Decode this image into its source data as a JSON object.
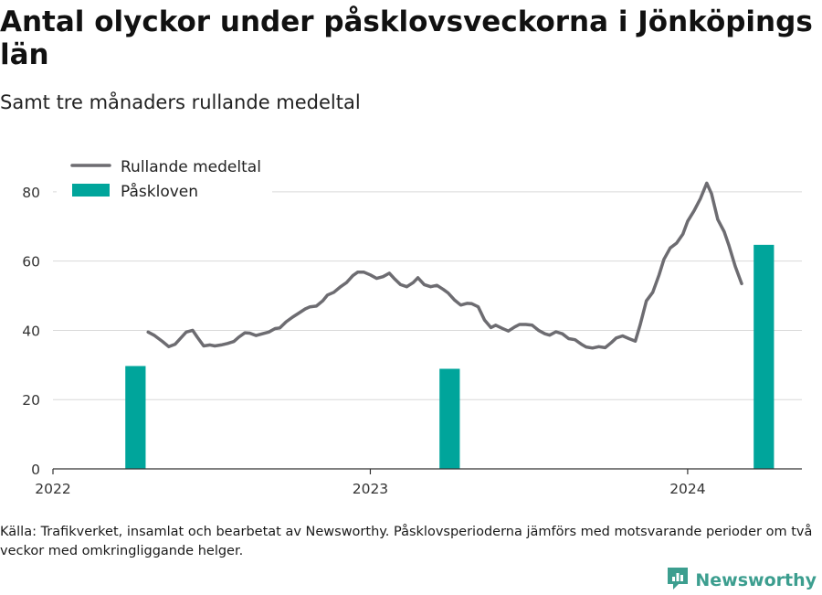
{
  "title": "Antal olyckor under påsklovsveckorna i Jönköpings län",
  "subtitle": "Samt tre månaders rullande medeltal",
  "source": "Källa: Trafikverket, insamlat och bearbetat av Newsworthy. Påsklovsperioderna jämförs med motsvarande perioder om två veckor med omkringliggande helger.",
  "brand": {
    "name": "Newsworthy",
    "icon": "newsworthy-logo-icon"
  },
  "colors": {
    "line": "#6d6c71",
    "bar": "#00a59b",
    "grid": "#d9d9d9",
    "brand": "#3c9e8f"
  },
  "chart_data": {
    "type": "bar+line",
    "xlim": [
      2022.0,
      2024.36
    ],
    "ylim": [
      0,
      90
    ],
    "x_ticks": [
      {
        "value": 2022,
        "label": "2022"
      },
      {
        "value": 2023,
        "label": "2023"
      },
      {
        "value": 2024,
        "label": "2024"
      }
    ],
    "y_ticks": [
      {
        "value": 0,
        "label": "0"
      },
      {
        "value": 20,
        "label": "20"
      },
      {
        "value": 40,
        "label": "40"
      },
      {
        "value": 60,
        "label": "60"
      },
      {
        "value": 80,
        "label": "80"
      }
    ],
    "grid": true,
    "legend": {
      "position": "top-left"
    },
    "series": [
      {
        "name": "Rullande medeltal",
        "type": "line",
        "points": [
          [
            2022.3,
            39.5
          ],
          [
            2022.32,
            38.5
          ],
          [
            2022.345,
            36.8
          ],
          [
            2022.365,
            35.3
          ],
          [
            2022.385,
            36.0
          ],
          [
            2022.405,
            38.0
          ],
          [
            2022.42,
            39.5
          ],
          [
            2022.44,
            40.0
          ],
          [
            2022.455,
            38.0
          ],
          [
            2022.475,
            35.5
          ],
          [
            2022.495,
            35.8
          ],
          [
            2022.51,
            35.5
          ],
          [
            2022.53,
            35.8
          ],
          [
            2022.55,
            36.2
          ],
          [
            2022.57,
            36.8
          ],
          [
            2022.585,
            38.0
          ],
          [
            2022.605,
            39.3
          ],
          [
            2022.62,
            39.2
          ],
          [
            2022.64,
            38.5
          ],
          [
            2022.66,
            39.0
          ],
          [
            2022.68,
            39.5
          ],
          [
            2022.7,
            40.5
          ],
          [
            2022.715,
            40.7
          ],
          [
            2022.735,
            42.5
          ],
          [
            2022.755,
            43.8
          ],
          [
            2022.775,
            45.0
          ],
          [
            2022.795,
            46.2
          ],
          [
            2022.81,
            46.8
          ],
          [
            2022.83,
            47.0
          ],
          [
            2022.85,
            48.5
          ],
          [
            2022.865,
            50.2
          ],
          [
            2022.885,
            51.0
          ],
          [
            2022.905,
            52.5
          ],
          [
            2022.925,
            53.8
          ],
          [
            2022.945,
            55.8
          ],
          [
            2022.96,
            56.8
          ],
          [
            2022.98,
            56.8
          ],
          [
            2023.0,
            56.0
          ],
          [
            2023.02,
            55.0
          ],
          [
            2023.04,
            55.5
          ],
          [
            2023.06,
            56.5
          ],
          [
            2023.075,
            55.0
          ],
          [
            2023.095,
            53.2
          ],
          [
            2023.115,
            52.6
          ],
          [
            2023.135,
            53.8
          ],
          [
            2023.15,
            55.2
          ],
          [
            2023.17,
            53.2
          ],
          [
            2023.19,
            52.6
          ],
          [
            2023.21,
            53.0
          ],
          [
            2023.23,
            51.8
          ],
          [
            2023.245,
            50.8
          ],
          [
            2023.265,
            48.8
          ],
          [
            2023.285,
            47.3
          ],
          [
            2023.305,
            47.8
          ],
          [
            2023.32,
            47.7
          ],
          [
            2023.34,
            46.8
          ],
          [
            2023.36,
            43.0
          ],
          [
            2023.38,
            40.8
          ],
          [
            2023.395,
            41.5
          ],
          [
            2023.415,
            40.6
          ],
          [
            2023.435,
            39.8
          ],
          [
            2023.455,
            41.0
          ],
          [
            2023.47,
            41.7
          ],
          [
            2023.49,
            41.7
          ],
          [
            2023.51,
            41.5
          ],
          [
            2023.53,
            40.0
          ],
          [
            2023.55,
            39.0
          ],
          [
            2023.565,
            38.6
          ],
          [
            2023.585,
            39.6
          ],
          [
            2023.605,
            39.0
          ],
          [
            2023.625,
            37.6
          ],
          [
            2023.645,
            37.3
          ],
          [
            2023.665,
            36.0
          ],
          [
            2023.68,
            35.2
          ],
          [
            2023.7,
            34.9
          ],
          [
            2023.72,
            35.3
          ],
          [
            2023.74,
            35.0
          ],
          [
            2023.76,
            36.5
          ],
          [
            2023.775,
            37.8
          ],
          [
            2023.795,
            38.4
          ],
          [
            2023.815,
            37.6
          ],
          [
            2023.835,
            36.9
          ],
          [
            2023.85,
            41.5
          ],
          [
            2023.87,
            48.5
          ],
          [
            2023.89,
            51.0
          ],
          [
            2023.91,
            56.0
          ],
          [
            2023.925,
            60.5
          ],
          [
            2023.945,
            63.8
          ],
          [
            2023.965,
            65.2
          ],
          [
            2023.985,
            67.8
          ],
          [
            2024.0,
            71.5
          ],
          [
            2024.02,
            74.5
          ],
          [
            2024.04,
            78.0
          ],
          [
            2024.06,
            82.5
          ],
          [
            2024.075,
            79.5
          ],
          [
            2024.095,
            72.0
          ],
          [
            2024.115,
            68.5
          ],
          [
            2024.13,
            64.5
          ],
          [
            2024.15,
            58.5
          ],
          [
            2024.17,
            53.5
          ]
        ]
      },
      {
        "name": "Påskloven",
        "type": "bar",
        "bars": [
          {
            "x": 2022.26,
            "value": 29.7
          },
          {
            "x": 2023.25,
            "value": 28.9
          },
          {
            "x": 2024.24,
            "value": 64.7
          }
        ],
        "bar_width_years": 0.064
      }
    ]
  }
}
